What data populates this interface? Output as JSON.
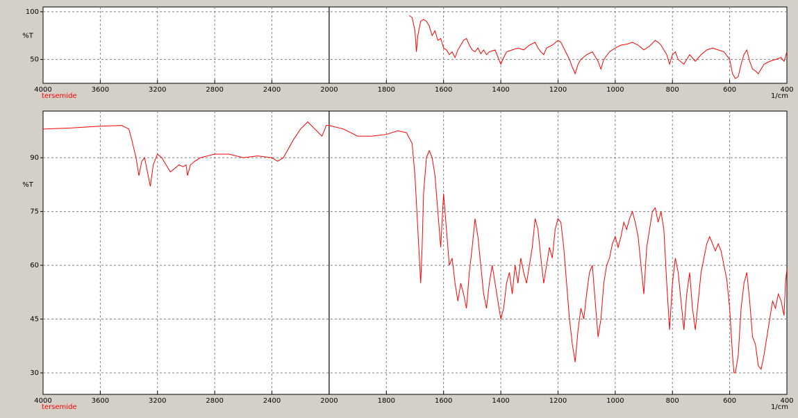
{
  "chart_data": [
    {
      "type": "line",
      "ylabel": "%T",
      "xlabel": "1/cm",
      "sample": "tersemide",
      "split": 2000,
      "grid": true,
      "xlim": [
        4000,
        400
      ],
      "xticks": [
        4000,
        3600,
        3200,
        2800,
        2400,
        2000,
        1800,
        1600,
        1400,
        1200,
        1000,
        800,
        600,
        400
      ],
      "ylim": [
        25,
        105
      ],
      "yticks": [
        100,
        50
      ],
      "x": [
        1720,
        1710,
        1700,
        1695,
        1690,
        1680,
        1670,
        1660,
        1650,
        1640,
        1630,
        1620,
        1610,
        1600,
        1590,
        1580,
        1570,
        1560,
        1550,
        1540,
        1530,
        1520,
        1510,
        1500,
        1490,
        1480,
        1470,
        1460,
        1450,
        1440,
        1420,
        1400,
        1390,
        1380,
        1360,
        1340,
        1320,
        1300,
        1280,
        1270,
        1260,
        1250,
        1240,
        1220,
        1200,
        1190,
        1180,
        1160,
        1150,
        1140,
        1130,
        1120,
        1100,
        1080,
        1060,
        1050,
        1040,
        1020,
        1000,
        980,
        960,
        940,
        920,
        900,
        880,
        860,
        850,
        840,
        820,
        810,
        800,
        790,
        780,
        760,
        740,
        720,
        700,
        680,
        660,
        640,
        620,
        600,
        590,
        580,
        570,
        560,
        550,
        540,
        530,
        520,
        510,
        500,
        480,
        460,
        440,
        420,
        410,
        400
      ],
      "series": [
        {
          "color": "#ff0000",
          "values": [
            96,
            94,
            80,
            58,
            75,
            90,
            92,
            90,
            85,
            75,
            80,
            70,
            72,
            62,
            60,
            55,
            58,
            52,
            60,
            65,
            70,
            72,
            65,
            60,
            58,
            62,
            56,
            60,
            55,
            58,
            60,
            45,
            52,
            58,
            60,
            62,
            60,
            65,
            68,
            62,
            58,
            55,
            62,
            65,
            70,
            68,
            62,
            50,
            42,
            35,
            45,
            50,
            55,
            58,
            48,
            40,
            50,
            58,
            62,
            65,
            66,
            68,
            65,
            60,
            64,
            70,
            68,
            65,
            55,
            45,
            55,
            58,
            50,
            45,
            55,
            48,
            55,
            60,
            62,
            60,
            58,
            50,
            35,
            30,
            32,
            45,
            55,
            60,
            48,
            40,
            38,
            35,
            45,
            48,
            50,
            52,
            48,
            58
          ]
        }
      ]
    },
    {
      "type": "line",
      "ylabel": "%T",
      "xlabel": "1/cm",
      "sample": "tersemide",
      "split": 2000,
      "grid": true,
      "xlim": [
        4000,
        400
      ],
      "xticks": [
        4000,
        3600,
        3200,
        2800,
        2400,
        2000,
        1800,
        1600,
        1400,
        1200,
        1000,
        800,
        600,
        400
      ],
      "ylim": [
        24,
        103
      ],
      "yticks": [
        90,
        75,
        60,
        45,
        30
      ],
      "x": [
        4000,
        3800,
        3600,
        3450,
        3400,
        3380,
        3350,
        3330,
        3310,
        3290,
        3270,
        3250,
        3230,
        3200,
        3170,
        3140,
        3110,
        3080,
        3050,
        3020,
        3000,
        2990,
        2970,
        2940,
        2900,
        2850,
        2800,
        2700,
        2600,
        2500,
        2400,
        2360,
        2320,
        2250,
        2200,
        2150,
        2100,
        2050,
        2020,
        2000,
        1950,
        1900,
        1850,
        1800,
        1760,
        1730,
        1710,
        1700,
        1690,
        1680,
        1675,
        1670,
        1660,
        1650,
        1640,
        1630,
        1620,
        1610,
        1600,
        1590,
        1580,
        1570,
        1560,
        1550,
        1540,
        1530,
        1520,
        1510,
        1500,
        1490,
        1480,
        1470,
        1460,
        1450,
        1440,
        1430,
        1420,
        1410,
        1400,
        1390,
        1380,
        1370,
        1360,
        1350,
        1340,
        1330,
        1320,
        1310,
        1300,
        1290,
        1280,
        1270,
        1260,
        1250,
        1240,
        1230,
        1220,
        1210,
        1200,
        1190,
        1180,
        1170,
        1160,
        1150,
        1140,
        1130,
        1120,
        1110,
        1100,
        1090,
        1080,
        1070,
        1060,
        1050,
        1040,
        1030,
        1020,
        1010,
        1000,
        990,
        980,
        970,
        960,
        950,
        940,
        930,
        920,
        910,
        900,
        890,
        880,
        870,
        860,
        850,
        840,
        830,
        820,
        810,
        800,
        790,
        780,
        770,
        760,
        750,
        740,
        730,
        720,
        710,
        700,
        690,
        680,
        670,
        660,
        650,
        640,
        630,
        620,
        610,
        600,
        590,
        585,
        580,
        570,
        560,
        550,
        540,
        530,
        520,
        510,
        500,
        490,
        480,
        470,
        460,
        450,
        440,
        430,
        420,
        410,
        405,
        400
      ],
      "series": [
        {
          "color": "#ff0000",
          "values": [
            98,
            98.3,
            98.8,
            99,
            98,
            95,
            90,
            85,
            89,
            90,
            86,
            82,
            88,
            91,
            90,
            88,
            86,
            87,
            88,
            87.5,
            88,
            85,
            88,
            89,
            90,
            90.5,
            91,
            91,
            90,
            90.5,
            90,
            89,
            90,
            95,
            98,
            100,
            98,
            96,
            99,
            99,
            98,
            96,
            96,
            96.5,
            97.5,
            97,
            94,
            85,
            70,
            55,
            65,
            80,
            90,
            92,
            90,
            85,
            75,
            65,
            80,
            70,
            60,
            62,
            55,
            50,
            55,
            52,
            48,
            58,
            65,
            73,
            68,
            60,
            52,
            48,
            55,
            60,
            55,
            50,
            45,
            48,
            55,
            58,
            52,
            60,
            55,
            62,
            58,
            55,
            60,
            65,
            73,
            70,
            62,
            55,
            60,
            65,
            62,
            70,
            73,
            72,
            65,
            55,
            45,
            38,
            33,
            42,
            48,
            45,
            52,
            58,
            60,
            50,
            40,
            45,
            55,
            60,
            62,
            66,
            68,
            65,
            68,
            72,
            70,
            73,
            75,
            72,
            68,
            60,
            52,
            65,
            70,
            75,
            76,
            72,
            75,
            70,
            55,
            42,
            55,
            62,
            58,
            50,
            42,
            52,
            58,
            48,
            42,
            50,
            58,
            62,
            66,
            68,
            66,
            64,
            66,
            64,
            60,
            56,
            48,
            35,
            30,
            30,
            35,
            48,
            55,
            58,
            50,
            40,
            38,
            32,
            31,
            35,
            40,
            45,
            50,
            48,
            52,
            50,
            46,
            55,
            59
          ]
        }
      ]
    }
  ]
}
